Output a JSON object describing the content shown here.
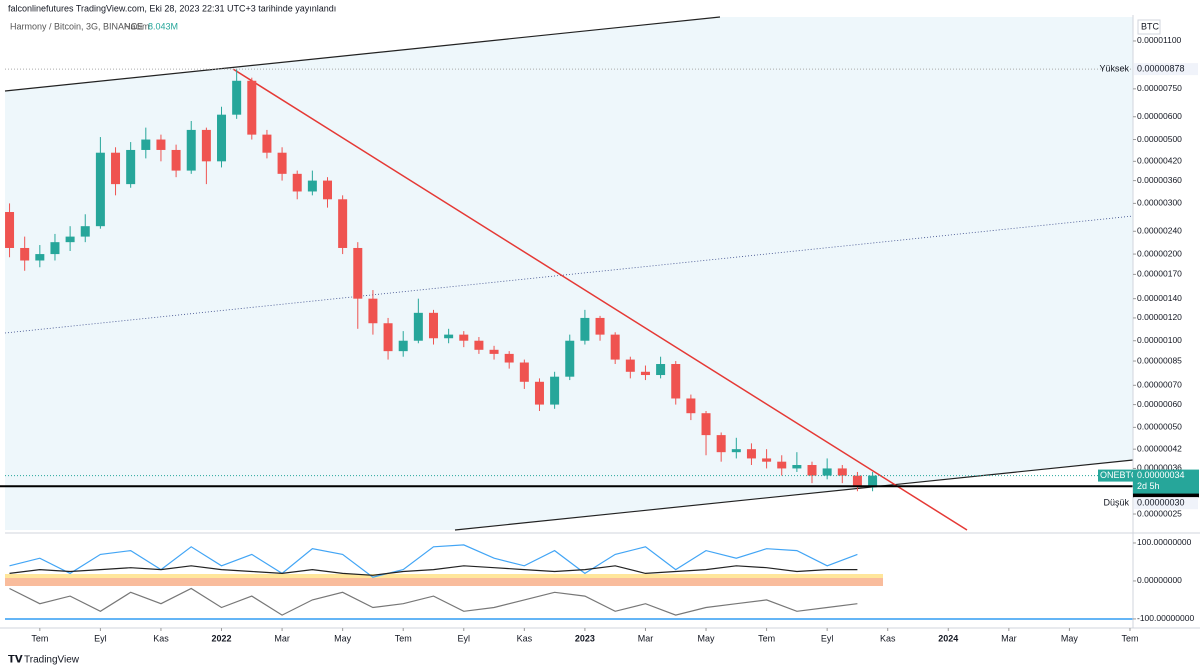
{
  "header": {
    "published": "falconlinefutures TradingView.com, Eki 28, 2023 22:31 UTC+3 tarihinde yayınlandı",
    "symbol": "Harmony / Bitcoin, 3G, BINANCE",
    "volume_label": "Hacim",
    "volume": "8.043M",
    "currency": "BTC"
  },
  "footer": "TradingView",
  "chart_data": [
    {
      "type": "candlestick",
      "log_scale": true,
      "up_color": "#26a69a",
      "down_color": "#ef5350",
      "xlim": [
        -1.15,
        36.1
      ],
      "ylim": [
        2.2e-07,
        1.354e-05
      ],
      "xticks": [
        {
          "value": 0,
          "label": "Tem"
        },
        {
          "value": 2,
          "label": "Eyl"
        },
        {
          "value": 4,
          "label": "Kas"
        },
        {
          "value": 6,
          "label": "2022"
        },
        {
          "value": 8,
          "label": "Mar"
        },
        {
          "value": 10,
          "label": "May"
        },
        {
          "value": 12,
          "label": "Tem"
        },
        {
          "value": 14,
          "label": "Eyl"
        },
        {
          "value": 16,
          "label": "Kas"
        },
        {
          "value": 18,
          "label": "2023"
        },
        {
          "value": 20,
          "label": "Mar"
        },
        {
          "value": 22,
          "label": "May"
        },
        {
          "value": 24,
          "label": "Tem"
        },
        {
          "value": 26,
          "label": "Eyl"
        },
        {
          "value": 28,
          "label": "Kas"
        },
        {
          "value": 30,
          "label": "2024"
        },
        {
          "value": 32,
          "label": "Mar"
        },
        {
          "value": 34,
          "label": "May"
        },
        {
          "value": 36,
          "label": "Tem"
        }
      ],
      "yticks": [
        {
          "value": 1.1e-05,
          "label": "0.00001100"
        },
        {
          "value": 7.5e-06,
          "label": "0.00000750"
        },
        {
          "value": 6e-06,
          "label": "0.00000600"
        },
        {
          "value": 5e-06,
          "label": "0.00000500"
        },
        {
          "value": 4.2e-06,
          "label": "0.00000420"
        },
        {
          "value": 3.6e-06,
          "label": "0.00000360"
        },
        {
          "value": 3e-06,
          "label": "0.00000300"
        },
        {
          "value": 2.4e-06,
          "label": "0.00000240"
        },
        {
          "value": 2e-06,
          "label": "0.00000200"
        },
        {
          "value": 1.7e-06,
          "label": "0.00000170"
        },
        {
          "value": 1.4e-06,
          "label": "0.00000140"
        },
        {
          "value": 1.2e-06,
          "label": "0.00000120"
        },
        {
          "value": 1e-06,
          "label": "0.00000100"
        },
        {
          "value": 8.5e-07,
          "label": "0.00000085"
        },
        {
          "value": 7e-07,
          "label": "0.00000070"
        },
        {
          "value": 6e-07,
          "label": "0.00000060"
        },
        {
          "value": 5e-07,
          "label": "0.00000050"
        },
        {
          "value": 4.2e-07,
          "label": "0.00000042"
        },
        {
          "value": 3.6e-07,
          "label": "0.00000036"
        },
        {
          "value": 2.5e-07,
          "label": "0.00000025"
        }
      ],
      "x": [
        -1,
        -0.5,
        0,
        0.5,
        1,
        1.5,
        2,
        2.5,
        3,
        3.5,
        4,
        4.5,
        5,
        5.5,
        6,
        6.5,
        7,
        7.5,
        8,
        8.5,
        9,
        9.5,
        10,
        10.5,
        11,
        11.5,
        12,
        12.5,
        13,
        13.5,
        14,
        14.5,
        15,
        15.5,
        16,
        16.5,
        17,
        17.5,
        18,
        18.5,
        19,
        19.5,
        20,
        20.5,
        21,
        21.5,
        22,
        22.5,
        23,
        23.5,
        24,
        24.5,
        25,
        25.5,
        26,
        26.5,
        27,
        27.5
      ],
      "open": [
        2.8e-06,
        2.1e-06,
        1.9e-06,
        2e-06,
        2.2e-06,
        2.3e-06,
        2.5e-06,
        4.5e-06,
        3.5e-06,
        4.6e-06,
        5e-06,
        4.6e-06,
        3.9e-06,
        5.4e-06,
        4.2e-06,
        6.1e-06,
        8e-06,
        5.2e-06,
        4.5e-06,
        3.8e-06,
        3.3e-06,
        3.6e-06,
        3.1e-06,
        2.1e-06,
        1.4e-06,
        1.15e-06,
        9.2e-07,
        1e-06,
        1.25e-06,
        1.02e-06,
        1.05e-06,
        1e-06,
        9.3e-07,
        9e-07,
        8.4e-07,
        7.2e-07,
        6e-07,
        7.5e-07,
        1e-06,
        1.2e-06,
        1.05e-06,
        8.6e-07,
        7.8e-07,
        7.6e-07,
        8.3e-07,
        6.3e-07,
        5.6e-07,
        4.7e-07,
        4.1e-07,
        4.2e-07,
        3.9e-07,
        3.8e-07,
        3.6e-07,
        3.7e-07,
        3.4e-07,
        3.6e-07,
        3.4e-07,
        3.1e-07
      ],
      "high": [
        3e-06,
        2.3e-06,
        2.15e-06,
        2.35e-06,
        2.5e-06,
        2.75e-06,
        5.1e-06,
        4.7e-06,
        4.9e-06,
        5.5e-06,
        5.2e-06,
        4.8e-06,
        5.8e-06,
        5.5e-06,
        6.5e-06,
        8.78e-06,
        8.2e-06,
        5.4e-06,
        4.7e-06,
        3.9e-06,
        3.9e-06,
        3.7e-06,
        3.2e-06,
        2.2e-06,
        1.5e-06,
        1.2e-06,
        1.08e-06,
        1.4e-06,
        1.28e-06,
        1.1e-06,
        1.08e-06,
        1.03e-06,
        9.6e-07,
        9.2e-07,
        8.6e-07,
        7.4e-07,
        7.8e-07,
        1.05e-06,
        1.28e-06,
        1.22e-06,
        1.07e-06,
        8.8e-07,
        8.2e-07,
        8.8e-07,
        8.5e-07,
        6.5e-07,
        5.7e-07,
        4.8e-07,
        4.6e-07,
        4.4e-07,
        4.2e-07,
        4e-07,
        4.1e-07,
        3.8e-07,
        3.9e-07,
        3.7e-07,
        3.5e-07,
        3.5e-07
      ],
      "low": [
        1.95e-06,
        1.75e-06,
        1.8e-06,
        1.9e-06,
        2.05e-06,
        2.2e-06,
        2.45e-06,
        3.2e-06,
        3.4e-06,
        4.3e-06,
        4.2e-06,
        3.7e-06,
        3.8e-06,
        3.5e-06,
        4e-06,
        5.9e-06,
        5e-06,
        4.3e-06,
        3.6e-06,
        3.1e-06,
        3.2e-06,
        2.9e-06,
        2e-06,
        1.1e-06,
        1.05e-06,
        8.6e-07,
        8.8e-07,
        9.8e-07,
        9.7e-07,
        9.8e-07,
        9.5e-07,
        9e-07,
        8.6e-07,
        8e-07,
        6.8e-07,
        5.7e-07,
        5.8e-07,
        7.3e-07,
        9.7e-07,
        1e-06,
        8.3e-07,
        7.4e-07,
        7.3e-07,
        7.4e-07,
        6e-07,
        5.3e-07,
        4e-07,
        3.8e-07,
        3.9e-07,
        3.7e-07,
        3.6e-07,
        3.4e-07,
        3.5e-07,
        3.2e-07,
        3.3e-07,
        3.2e-07,
        3e-07,
        3e-07
      ],
      "close": [
        2.1e-06,
        1.9e-06,
        2e-06,
        2.2e-06,
        2.3e-06,
        2.5e-06,
        4.5e-06,
        3.5e-06,
        4.6e-06,
        5e-06,
        4.6e-06,
        3.9e-06,
        5.4e-06,
        4.2e-06,
        6.1e-06,
        8e-06,
        5.2e-06,
        4.5e-06,
        3.8e-06,
        3.3e-06,
        3.6e-06,
        3.1e-06,
        2.1e-06,
        1.4e-06,
        1.15e-06,
        9.2e-07,
        1e-06,
        1.25e-06,
        1.02e-06,
        1.05e-06,
        1e-06,
        9.3e-07,
        9e-07,
        8.4e-07,
        7.2e-07,
        6e-07,
        7.5e-07,
        1e-06,
        1.2e-06,
        1.05e-06,
        8.6e-07,
        7.8e-07,
        7.6e-07,
        8.3e-07,
        6.3e-07,
        5.6e-07,
        4.7e-07,
        4.1e-07,
        4.2e-07,
        3.9e-07,
        3.8e-07,
        3.6e-07,
        3.7e-07,
        3.4e-07,
        3.6e-07,
        3.4e-07,
        3.1e-07,
        3.4e-07
      ],
      "high_marker": {
        "text": "Yüksek",
        "value": 8.78e-06,
        "value_label": "0.00000878"
      },
      "low_marker": {
        "text": "Düşük",
        "value": 3e-07,
        "value_label": "0.00000030"
      },
      "horizontal_line": {
        "value": 3e-07,
        "value_label": "0.00000030"
      },
      "last_price": {
        "symbol": "ONEBTC",
        "value": 3.4e-07,
        "value_label": "0.00000034",
        "countdown": "2d 5h"
      }
    },
    {
      "type": "line",
      "xlim": [
        -1.15,
        36.1
      ],
      "ylim": [
        -116,
        121
      ],
      "yticks": [
        {
          "value": 100,
          "label": "100.00000000"
        },
        {
          "value": 0,
          "label": "0.00000000"
        },
        {
          "value": -100,
          "label": "-100.00000000"
        }
      ],
      "x": [
        -1,
        0,
        1,
        2,
        3,
        4,
        5,
        6,
        7,
        8,
        9,
        10,
        11,
        12,
        13,
        14,
        15,
        16,
        17,
        18,
        19,
        20,
        21,
        22,
        23,
        24,
        25,
        26,
        27
      ],
      "series": [
        {
          "color": "#42a5f5",
          "values": [
            40,
            60,
            20,
            70,
            80,
            30,
            90,
            40,
            70,
            20,
            85,
            70,
            10,
            30,
            90,
            95,
            60,
            40,
            80,
            20,
            70,
            90,
            30,
            80,
            60,
            85,
            80,
            40,
            70
          ]
        },
        {
          "color": "#222222",
          "values": [
            20,
            30,
            25,
            30,
            35,
            30,
            40,
            30,
            25,
            20,
            30,
            20,
            15,
            25,
            30,
            40,
            35,
            30,
            25,
            30,
            40,
            20,
            25,
            30,
            40,
            35,
            25,
            30,
            30
          ]
        },
        {
          "color": "#777777",
          "values": [
            -20,
            -60,
            -40,
            -80,
            -30,
            -60,
            -20,
            -70,
            -40,
            -90,
            -50,
            -30,
            -70,
            -60,
            -40,
            -80,
            -70,
            -50,
            -30,
            -40,
            -80,
            -60,
            -90,
            -70,
            -60,
            -50,
            -80,
            -70,
            -60
          ]
        }
      ]
    }
  ]
}
